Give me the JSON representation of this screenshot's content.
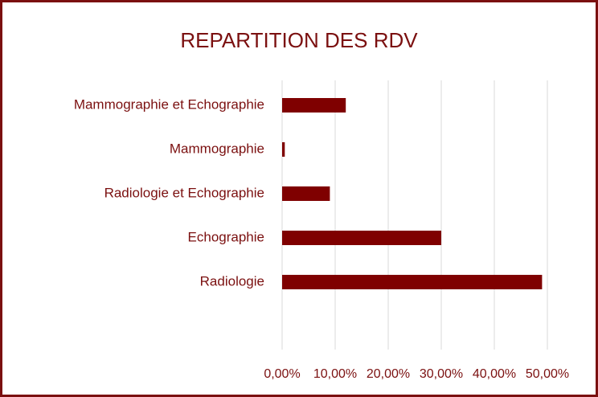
{
  "chart_data": {
    "type": "bar",
    "orientation": "horizontal",
    "title": "REPARTITION DES RDV",
    "categories": [
      "Mammographie et Echographie",
      "Mammographie",
      "Radiologie et Echographie",
      "Echographie",
      "Radiologie"
    ],
    "values": [
      12,
      0.5,
      9,
      30,
      49
    ],
    "color": "#7f0000",
    "xlim": [
      0,
      50
    ],
    "xticks": [
      {
        "value": 0,
        "label": "0,00%"
      },
      {
        "value": 10,
        "label": "10,00%"
      },
      {
        "value": 20,
        "label": "20,00%"
      },
      {
        "value": 30,
        "label": "30,00%"
      },
      {
        "value": 40,
        "label": "40,00%"
      },
      {
        "value": 50,
        "label": "50,00%"
      }
    ],
    "grid": true
  }
}
